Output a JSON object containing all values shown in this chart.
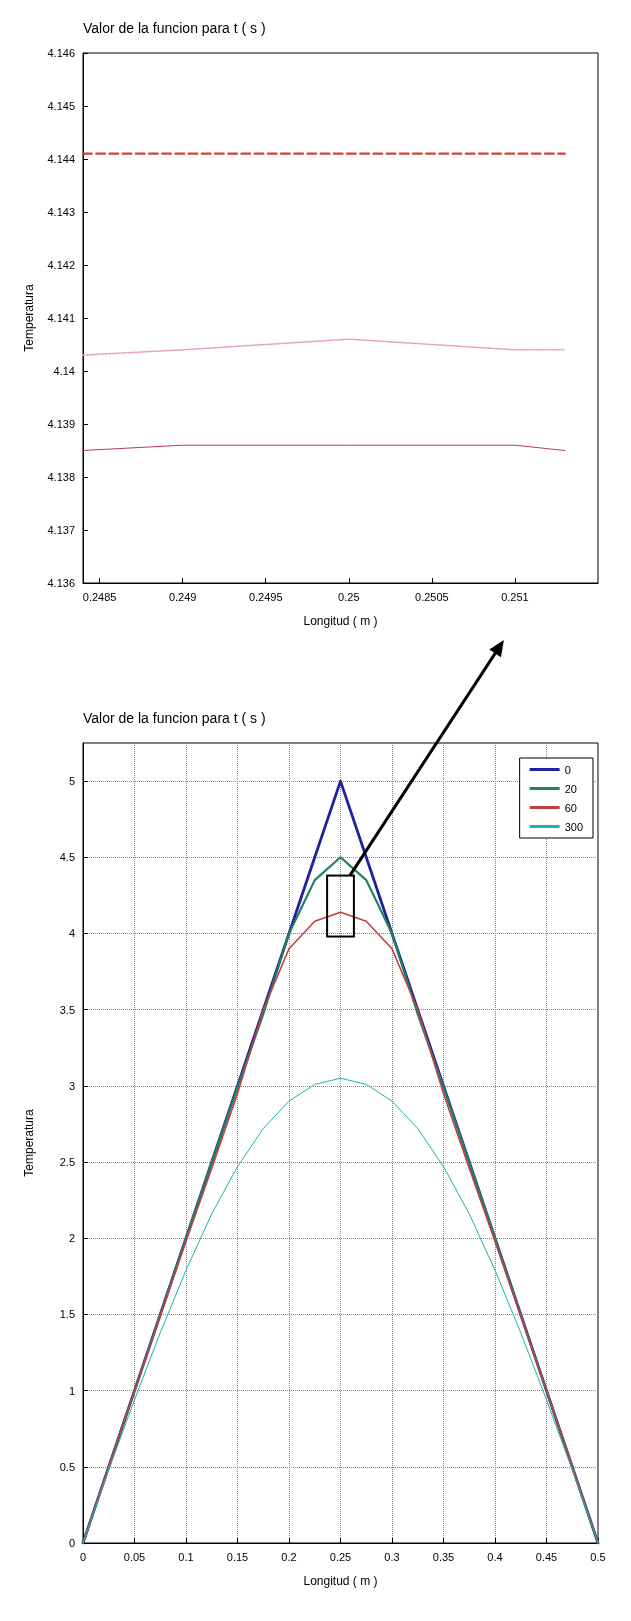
{
  "chart_data": [
    {
      "type": "line",
      "title": "Valor de la funcion para t ( s )",
      "xlabel": "Longitud ( m )",
      "ylabel": "Temperatura",
      "x": [
        0.2484,
        0.249,
        0.2495,
        0.25,
        0.2505,
        0.251,
        0.2513
      ],
      "series": [
        {
          "color": "#d04040",
          "line_style": "dashed",
          "values": [
            4.1441,
            4.1441,
            4.1441,
            4.1441,
            4.1441,
            4.1441,
            4.1441
          ]
        },
        {
          "color": "#e8a0b0",
          "line_style": "dotted",
          "values": [
            4.1403,
            4.1404,
            4.1405,
            4.1406,
            4.1405,
            4.1404,
            4.1404
          ]
        },
        {
          "color": "#b04060",
          "line_style": "solid",
          "values": [
            4.1385,
            4.1386,
            4.1386,
            4.1386,
            4.1386,
            4.1386,
            4.1385
          ]
        }
      ],
      "xlim": [
        0.2484,
        0.2515
      ],
      "xticks": [
        0.2485,
        0.249,
        0.2495,
        0.25,
        0.2505,
        0.251
      ],
      "ylim": [
        4.136,
        4.146
      ],
      "yticks": [
        4.136,
        4.137,
        4.138,
        4.139,
        4.14,
        4.141,
        4.142,
        4.143,
        4.144,
        4.145,
        4.146
      ],
      "grid": false,
      "marker": "none"
    },
    {
      "type": "line",
      "title": "Valor de la funcion para t ( s )",
      "xlabel": "Longitud ( m )",
      "ylabel": "Temperatura",
      "legend": "top right",
      "x": [
        0,
        0.025,
        0.05,
        0.075,
        0.1,
        0.125,
        0.15,
        0.175,
        0.2,
        0.225,
        0.25,
        0.275,
        0.3,
        0.325,
        0.35,
        0.375,
        0.4,
        0.425,
        0.45,
        0.475,
        0.5
      ],
      "series": [
        {
          "name": "0",
          "color": "#2020a0",
          "values": [
            0,
            0.5,
            1,
            1.5,
            2,
            2.5,
            3,
            3.5,
            4,
            4.5,
            5,
            4.5,
            4,
            3.5,
            3,
            2.5,
            2,
            1.5,
            1,
            0.5,
            0
          ]
        },
        {
          "name": "20",
          "color": "#208060",
          "values": [
            0,
            0.5,
            1,
            1.5,
            2,
            2.5,
            2.99,
            3.47,
            4,
            4.35,
            4.5,
            4.35,
            4,
            3.47,
            2.99,
            2.5,
            2,
            1.5,
            1,
            0.5,
            0
          ]
        },
        {
          "name": "60",
          "color": "#c04040",
          "values": [
            0,
            0.5,
            1,
            1.49,
            1.98,
            2.46,
            2.95,
            3.5,
            3.9,
            4.08,
            4.14,
            4.08,
            3.9,
            3.5,
            2.95,
            2.46,
            1.98,
            1.49,
            1,
            0.5,
            0
          ]
        },
        {
          "name": "300",
          "color": "#20b0b0",
          "values": [
            0,
            0.48,
            0.94,
            1.38,
            1.79,
            2.16,
            2.47,
            2.72,
            2.9,
            3.01,
            3.05,
            3.01,
            2.9,
            2.72,
            2.47,
            2.16,
            1.79,
            1.38,
            0.94,
            0.48,
            0
          ]
        }
      ],
      "xlim": [
        0,
        0.5
      ],
      "xticks": [
        0,
        0.05,
        0.1,
        0.15,
        0.2,
        0.25,
        0.3,
        0.35,
        0.4,
        0.45,
        0.5
      ],
      "ylim": [
        0,
        5.25
      ],
      "yticks": [
        0,
        0.5,
        1,
        1.5,
        2,
        2.5,
        3,
        3.5,
        4,
        4.5,
        5
      ],
      "grid": true,
      "marker": "none"
    }
  ]
}
